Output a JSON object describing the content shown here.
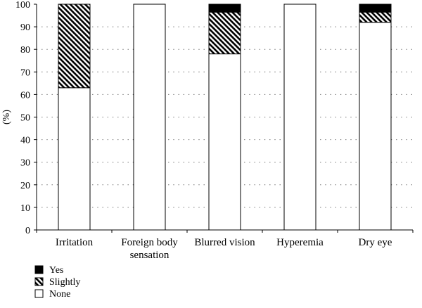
{
  "chart_data": {
    "type": "bar",
    "stacked": true,
    "categories": [
      [
        "Irritation"
      ],
      [
        "Foreign body",
        "sensation"
      ],
      [
        "Blurred vision"
      ],
      [
        "Hyperemia"
      ],
      [
        "Dry eye"
      ]
    ],
    "series": [
      {
        "name": "None",
        "values": [
          63,
          100,
          78,
          100,
          92
        ],
        "fill": "none-fill"
      },
      {
        "name": "Slightly",
        "values": [
          37,
          0,
          18.5,
          0,
          4.5
        ],
        "fill": "hatch"
      },
      {
        "name": "Yes",
        "values": [
          0,
          0,
          3.5,
          0,
          3.5
        ],
        "fill": "solid-black"
      }
    ],
    "ylabel": "(%)",
    "ylim": [
      0,
      100
    ],
    "yticks": [
      "0",
      "10",
      "20",
      "30",
      "40",
      "50",
      "60",
      "70",
      "80",
      "90",
      "100"
    ],
    "grid": "dotted horizontal",
    "legend": {
      "position": "bottom-left",
      "order": [
        "Yes",
        "Slightly",
        "None"
      ]
    },
    "colors": {
      "bar_outline": "#000000",
      "solid": "#000000",
      "background": "#ffffff",
      "grid": "#555555"
    }
  }
}
